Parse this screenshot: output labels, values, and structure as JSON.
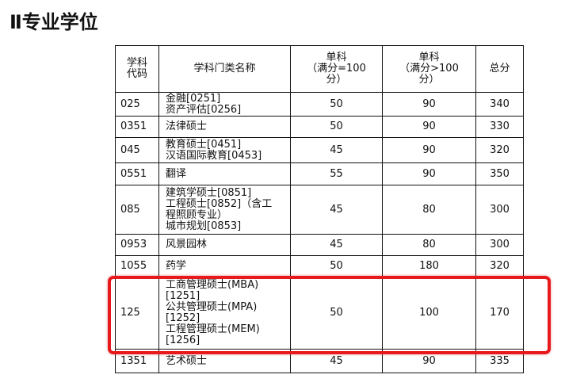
{
  "title": "Ⅱ专业学位",
  "table": {
    "headers": [
      "学科\n代码",
      "学科门类名称",
      "单科\n（满分=100\n分）",
      "单科\n（满分>100\n分）",
      "总分"
    ],
    "rows": [
      {
        "code": "025",
        "name": "金融[0251]\n资产评估[0256]",
        "single100": "50",
        "singleOver100": "90",
        "total": "340"
      },
      {
        "code": "0351",
        "name": "法律硕士",
        "single100": "50",
        "singleOver100": "90",
        "total": "330"
      },
      {
        "code": "045",
        "name": "教育硕士[0451]\n汉语国际教育[0453]",
        "single100": "45",
        "singleOver100": "90",
        "total": "320"
      },
      {
        "code": "0551",
        "name": "翻译",
        "single100": "55",
        "singleOver100": "90",
        "total": "350"
      },
      {
        "code": "085",
        "name": "建筑学硕士[0851]\n工程硕士[0852]（含工\n程照顾专业）\n城市规划[0853]",
        "single100": "45",
        "singleOver100": "80",
        "total": "300"
      },
      {
        "code": "0953",
        "name": "风景园林",
        "single100": "45",
        "singleOver100": "80",
        "total": "300"
      },
      {
        "code": "1055",
        "name": "药学",
        "single100": "50",
        "singleOver100": "180",
        "total": "320"
      },
      {
        "code": "125",
        "name": "工商管理硕士(MBA)\n[1251]\n公共管理硕士(MPA)\n[1252]\n工程管理硕士(MEM)\n[1256]",
        "single100": "50",
        "singleOver100": "100",
        "total": "170",
        "highlighted": true
      },
      {
        "code": "1351",
        "name": "艺术硕士",
        "single100": "45",
        "singleOver100": "90",
        "total": "335"
      }
    ]
  },
  "highlight_color": "#e8191c"
}
